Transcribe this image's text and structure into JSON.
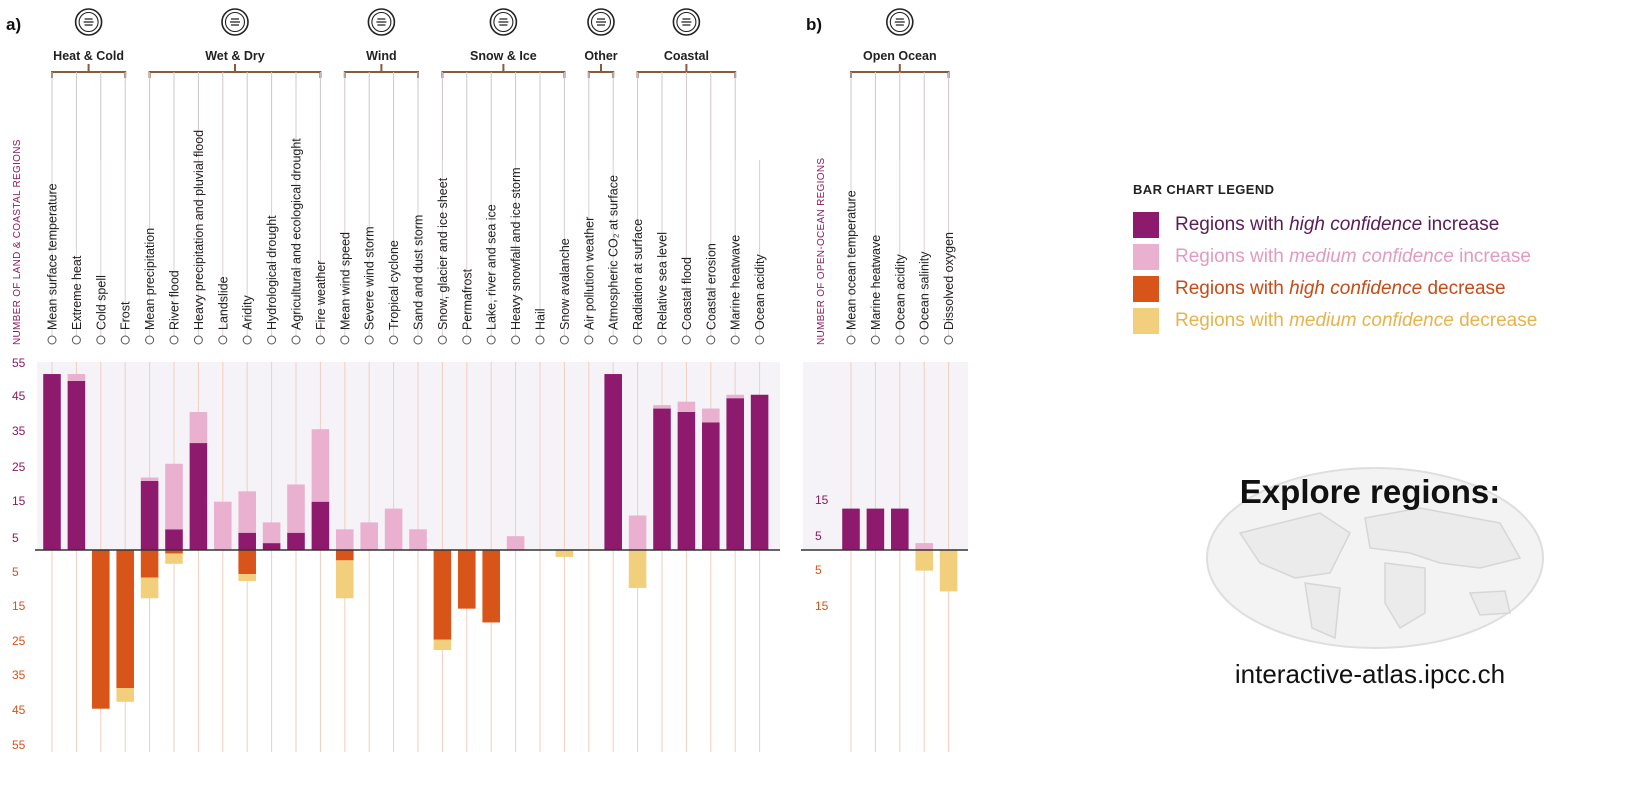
{
  "panel_a_letter": "a)",
  "panel_b_letter": "b)",
  "left_axis_title": "NUMBER OF LAND & COASTAL REGIONS",
  "right_axis_title": "NUMBER OF OPEN-OCEAN REGIONS",
  "colors": {
    "high_increase": "#8e1a6e",
    "medium_increase": "#eab0cf",
    "high_decrease": "#d95419",
    "medium_decrease": "#f2cf7d",
    "bracket": "#8a5a3a",
    "grid": "#f2cec0",
    "panel_bg": "#f6f3f8"
  },
  "legend": {
    "title": "BAR CHART LEGEND",
    "items": [
      {
        "pre": "Regions with ",
        "em": "high confidence",
        "post": " increase",
        "color": "#8e1a6e",
        "text_color": "#5a1d55"
      },
      {
        "pre": "Regions with ",
        "em": "medium confidence",
        "post": " increase",
        "color": "#eab0cf",
        "text_color": "#e39ac1"
      },
      {
        "pre": "Regions with ",
        "em": "high confidence",
        "post": " decrease",
        "color": "#d95419",
        "text_color": "#c84a15"
      },
      {
        "pre": "Regions with ",
        "em": "medium confidence",
        "post": " decrease",
        "color": "#f2cf7d",
        "text_color": "#e9b24a"
      }
    ]
  },
  "explore": {
    "title": "Explore regions:",
    "url": "interactive-atlas.ipcc.ch"
  },
  "chart_data": [
    {
      "type": "bar",
      "panel": "a",
      "stacked": true,
      "ylim": [
        -55,
        55
      ],
      "yticks": [
        "55",
        "45",
        "35",
        "25",
        "15",
        "5",
        "5",
        "15",
        "25",
        "35",
        "45",
        "55"
      ],
      "groups": [
        {
          "name": "Heat & Cold",
          "icon": "thermometer-icon",
          "start": 0,
          "end": 3
        },
        {
          "name": "Wet & Dry",
          "icon": "droplet-icon",
          "start": 4,
          "end": 11
        },
        {
          "name": "Wind",
          "icon": "wind-icon",
          "start": 12,
          "end": 15
        },
        {
          "name": "Snow & Ice",
          "icon": "snowflake-icon",
          "start": 16,
          "end": 21
        },
        {
          "name": "Other",
          "icon": "particles-icon",
          "start": 22,
          "end": 23
        },
        {
          "name": "Coastal",
          "icon": "coastal-icon",
          "start": 24,
          "end": 28
        }
      ],
      "categories": [
        "Mean surface temperature",
        "Extreme heat",
        "Cold spell",
        "Frost",
        "Mean precipitation",
        "River flood",
        "Heavy precipitation and pluvial flood",
        "Landslide",
        "Aridity",
        "Hydrological drought",
        "Agricultural and ecological drought",
        "Fire weather",
        "Mean wind speed",
        "Severe wind storm",
        "Tropical cyclone",
        "Sand and dust storm",
        "Snow, glacier and ice sheet",
        "Permafrost",
        "Lake, river and sea ice",
        "Heavy snowfall and ice storm",
        "Hail",
        "Snow avalanche",
        "Air pollution weather",
        "Atmospheric CO₂ at surface",
        "Radiation at surface",
        "Relative sea level",
        "Coastal flood",
        "Coastal erosion",
        "Marine heatwave",
        "Ocean acidity"
      ],
      "series": [
        {
          "name": "Regions with high confidence increase",
          "values": [
            51,
            49,
            0,
            0,
            20,
            6,
            31,
            0,
            5,
            2,
            5,
            14,
            0,
            0,
            0,
            0,
            0,
            0,
            0,
            0,
            0,
            0,
            0,
            51,
            0,
            41,
            40,
            37,
            44,
            45
          ]
        },
        {
          "name": "Regions with medium confidence increase",
          "values": [
            0,
            2,
            0,
            0,
            1,
            19,
            9,
            14,
            12,
            6,
            14,
            21,
            6,
            8,
            12,
            6,
            0,
            0,
            0,
            4,
            0,
            0,
            0,
            0,
            10,
            1,
            3,
            4,
            1,
            0
          ]
        },
        {
          "name": "Regions with high confidence decrease",
          "values": [
            0,
            0,
            -46,
            -40,
            -8,
            -1,
            0,
            0,
            -7,
            0,
            0,
            0,
            -3,
            0,
            0,
            0,
            -26,
            -17,
            -21,
            0,
            0,
            0,
            0,
            0,
            0,
            0,
            0,
            0,
            0,
            0
          ]
        },
        {
          "name": "Regions with medium confidence decrease",
          "values": [
            0,
            0,
            0,
            -4,
            -6,
            -3,
            0,
            0,
            -2,
            0,
            0,
            0,
            -11,
            0,
            0,
            0,
            -3,
            0,
            0,
            0,
            0,
            -2,
            0,
            0,
            -11,
            0,
            0,
            0,
            0,
            0
          ]
        }
      ]
    },
    {
      "type": "bar",
      "panel": "b",
      "stacked": true,
      "ylim": [
        -55,
        55
      ],
      "yticks": [
        "15",
        "5",
        "5",
        "15"
      ],
      "groups": [
        {
          "name": "Open Ocean",
          "icon": "wave-icon",
          "start": 0,
          "end": 4
        }
      ],
      "categories": [
        "Mean ocean temperature",
        "Marine heatwave",
        "Ocean acidity",
        "Ocean salinity",
        "Dissolved oxygen"
      ],
      "series": [
        {
          "name": "Regions with high confidence increase",
          "values": [
            12,
            12,
            12,
            0,
            0
          ]
        },
        {
          "name": "Regions with medium confidence increase",
          "values": [
            0,
            0,
            0,
            2,
            0
          ]
        },
        {
          "name": "Regions with high confidence decrease",
          "values": [
            0,
            0,
            0,
            0,
            0
          ]
        },
        {
          "name": "Regions with medium confidence decrease",
          "values": [
            0,
            0,
            0,
            -6,
            -12
          ]
        }
      ]
    }
  ]
}
